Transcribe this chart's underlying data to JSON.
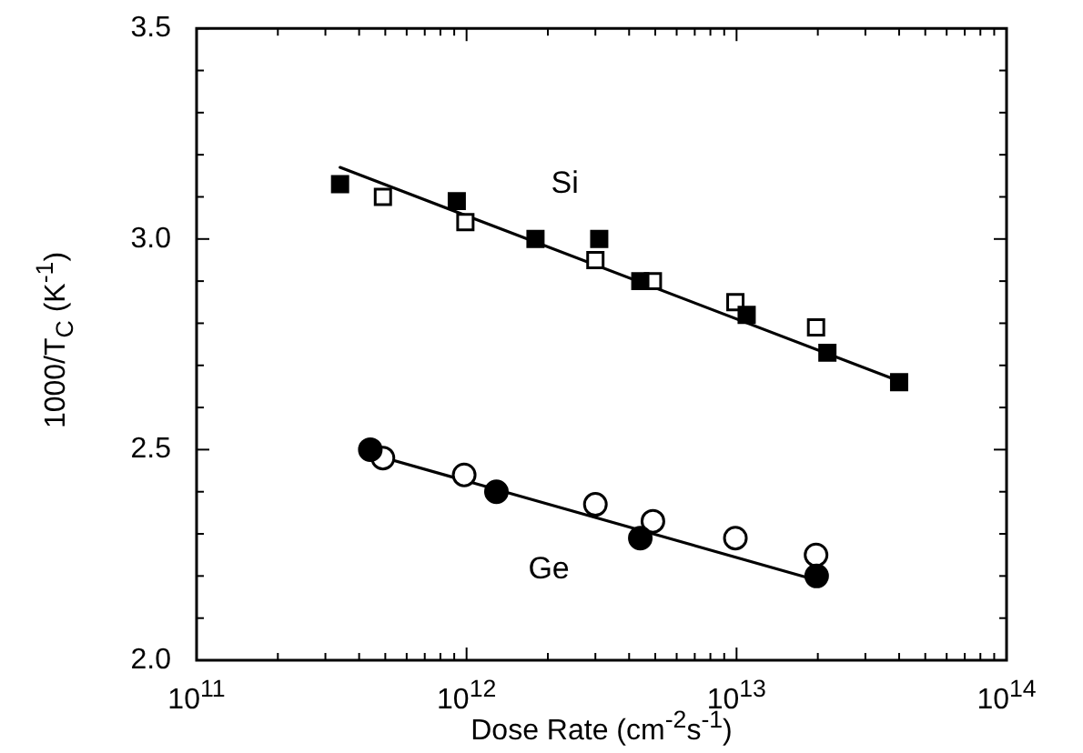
{
  "chart_data": {
    "type": "scatter",
    "xlabel": "Dose Rate (cm$^{-2}$s$^{-1}$)",
    "ylabel": "1000/T$_{C}$ (K$^{-1}$)",
    "log": "x",
    "grid": false,
    "xlim": [
      100000000000.0,
      100000000000000.0
    ],
    "ylim": [
      2.0,
      3.5
    ],
    "xticks": [
      {
        "value": 100000000000.0,
        "label": "10$^{11}$"
      },
      {
        "value": 200000000000.0,
        "label": null
      },
      {
        "value": 300000000000.0,
        "label": null
      },
      {
        "value": 400000000000.0,
        "label": null
      },
      {
        "value": 500000000000.0,
        "label": null
      },
      {
        "value": 600000000000.0,
        "label": null
      },
      {
        "value": 700000000000.0,
        "label": null
      },
      {
        "value": 800000000000.0,
        "label": null
      },
      {
        "value": 900000000000.0,
        "label": null
      },
      {
        "value": 1000000000000.0,
        "label": "10$^{12}$"
      },
      {
        "value": 2000000000000.0,
        "label": null
      },
      {
        "value": 3000000000000.0,
        "label": null
      },
      {
        "value": 4000000000000.0,
        "label": null
      },
      {
        "value": 5000000000000.0,
        "label": null
      },
      {
        "value": 6000000000000.0,
        "label": null
      },
      {
        "value": 7000000000000.0,
        "label": null
      },
      {
        "value": 8000000000000.0,
        "label": null
      },
      {
        "value": 9000000000000.0,
        "label": null
      },
      {
        "value": 10000000000000.0,
        "label": "10$^{13}$"
      },
      {
        "value": 20000000000000.0,
        "label": null
      },
      {
        "value": 30000000000000.0,
        "label": null
      },
      {
        "value": 40000000000000.0,
        "label": null
      },
      {
        "value": 50000000000000.0,
        "label": null
      },
      {
        "value": 60000000000000.0,
        "label": null
      },
      {
        "value": 70000000000000.0,
        "label": null
      },
      {
        "value": 80000000000000.0,
        "label": null
      },
      {
        "value": 90000000000000.0,
        "label": null
      },
      {
        "value": 100000000000000.0,
        "label": "10$^{14}$"
      }
    ],
    "yticks": [
      {
        "value": 2.0,
        "label": "2.0"
      },
      {
        "value": 2.1,
        "label": null
      },
      {
        "value": 2.2,
        "label": null
      },
      {
        "value": 2.3,
        "label": null
      },
      {
        "value": 2.4,
        "label": null
      },
      {
        "value": 2.5,
        "label": "2.5"
      },
      {
        "value": 2.6,
        "label": null
      },
      {
        "value": 2.7,
        "label": null
      },
      {
        "value": 2.8,
        "label": null
      },
      {
        "value": 2.9,
        "label": null
      },
      {
        "value": 3.0,
        "label": "3.0"
      },
      {
        "value": 3.1,
        "label": null
      },
      {
        "value": 3.2,
        "label": null
      },
      {
        "value": 3.3,
        "label": null
      },
      {
        "value": 3.4,
        "label": null
      },
      {
        "value": 3.5,
        "label": "3.5"
      }
    ],
    "legend": false,
    "series": [
      {
        "type": "scatter",
        "marker": "square",
        "color": "#000000",
        "x": [
          340000000000.0,
          920000000000.0,
          1800000000000.0,
          3100000000000.0,
          4400000000000.0,
          10900000000000.0,
          21700000000000.0,
          40000000000000.0
        ],
        "values": [
          3.13,
          3.09,
          3.0,
          3.0,
          2.9,
          2.82,
          2.73,
          2.66
        ]
      },
      {
        "type": "scatter",
        "marker": "square",
        "color": "#ffffff",
        "x": [
          490000000000.0,
          990000000000.0,
          3000000000000.0,
          4900000000000.0,
          9900000000000.0,
          19700000000000.0
        ],
        "values": [
          3.1,
          3.04,
          2.95,
          2.9,
          2.85,
          2.79
        ]
      },
      {
        "type": "scatter",
        "marker": "circle",
        "color": "#000000",
        "x": [
          440000000000.0,
          1290000000000.0,
          4400000000000.0,
          19800000000000.0
        ],
        "values": [
          2.5,
          2.4,
          2.29,
          2.2
        ]
      },
      {
        "type": "scatter",
        "marker": "circle",
        "color": "#ffffff",
        "x": [
          490000000000.0,
          980000000000.0,
          3000000000000.0,
          4900000000000.0,
          9900000000000.0,
          19700000000000.0
        ],
        "values": [
          2.48,
          2.44,
          2.37,
          2.33,
          2.29,
          2.25
        ]
      },
      {
        "type": "line",
        "name": "Si",
        "marker": "none",
        "color": "#000000",
        "x": [
          340000000000.0,
          41000000000000.0
        ],
        "values": [
          3.17,
          2.66
        ]
      },
      {
        "type": "line",
        "name": "Ge",
        "marker": "none",
        "color": "#000000",
        "x": [
          440000000000.0,
          19800000000000.0
        ],
        "values": [
          2.49,
          2.19
        ]
      }
    ]
  }
}
